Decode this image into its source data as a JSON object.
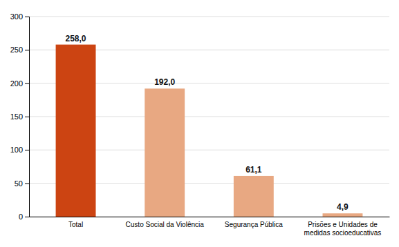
{
  "chart_data": {
    "type": "bar",
    "categories": [
      "Total",
      "Custo Social da Violência",
      "Segurança Pública",
      "Prisões e Unidades de\nmedidas socioeducativas"
    ],
    "values": [
      258.0,
      192.0,
      61.1,
      4.9
    ],
    "value_labels": [
      "258,0",
      "192,0",
      "61,1",
      "4,9"
    ],
    "colors": [
      "#cc4412",
      "#e8a882",
      "#e8a882",
      "#e8a882"
    ],
    "ylim": [
      0,
      300
    ],
    "yticks": [
      0,
      50,
      100,
      150,
      200,
      250,
      300
    ],
    "grid": true,
    "data_labels": true
  }
}
